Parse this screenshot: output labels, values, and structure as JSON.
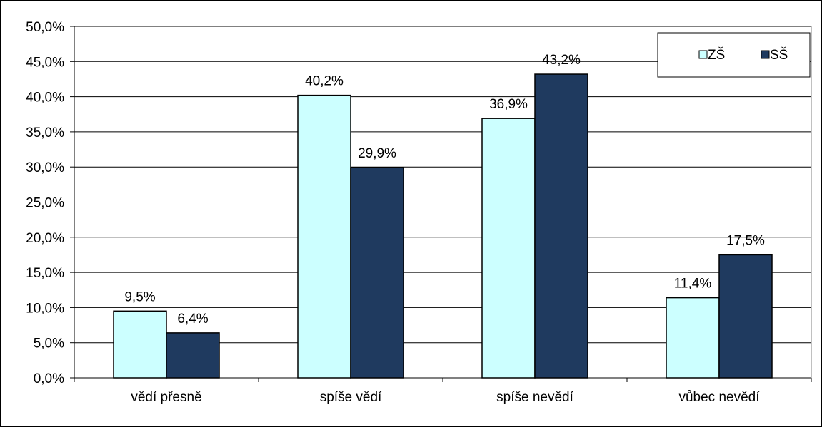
{
  "chart_data": {
    "type": "bar",
    "categories": [
      "vědí přesně",
      "spíše vědí",
      "spíše nevědí",
      "vůbec nevědí"
    ],
    "series": [
      {
        "name": "ZŠ",
        "values": [
          9.5,
          40.2,
          36.9,
          11.4
        ],
        "labels": [
          "9,5%",
          "40,2%",
          "36,9%",
          "11,4%"
        ],
        "color": "#ccffff"
      },
      {
        "name": "SŠ",
        "values": [
          6.4,
          29.9,
          43.2,
          17.5
        ],
        "labels": [
          "6,4%",
          "29,9%",
          "43,2%",
          "17,5%"
        ],
        "color": "#1f3a5f"
      }
    ],
    "ylim": [
      0,
      50
    ],
    "yticks": [
      0,
      5,
      10,
      15,
      20,
      25,
      30,
      35,
      40,
      45,
      50
    ],
    "ytick_labels": [
      "0,0%",
      "5,0%",
      "10,0%",
      "15,0%",
      "20,0%",
      "25,0%",
      "30,0%",
      "35,0%",
      "40,0%",
      "45,0%",
      "50,0%"
    ],
    "grid": true,
    "legend_position": "top-right",
    "title": "",
    "xlabel": "",
    "ylabel": ""
  }
}
